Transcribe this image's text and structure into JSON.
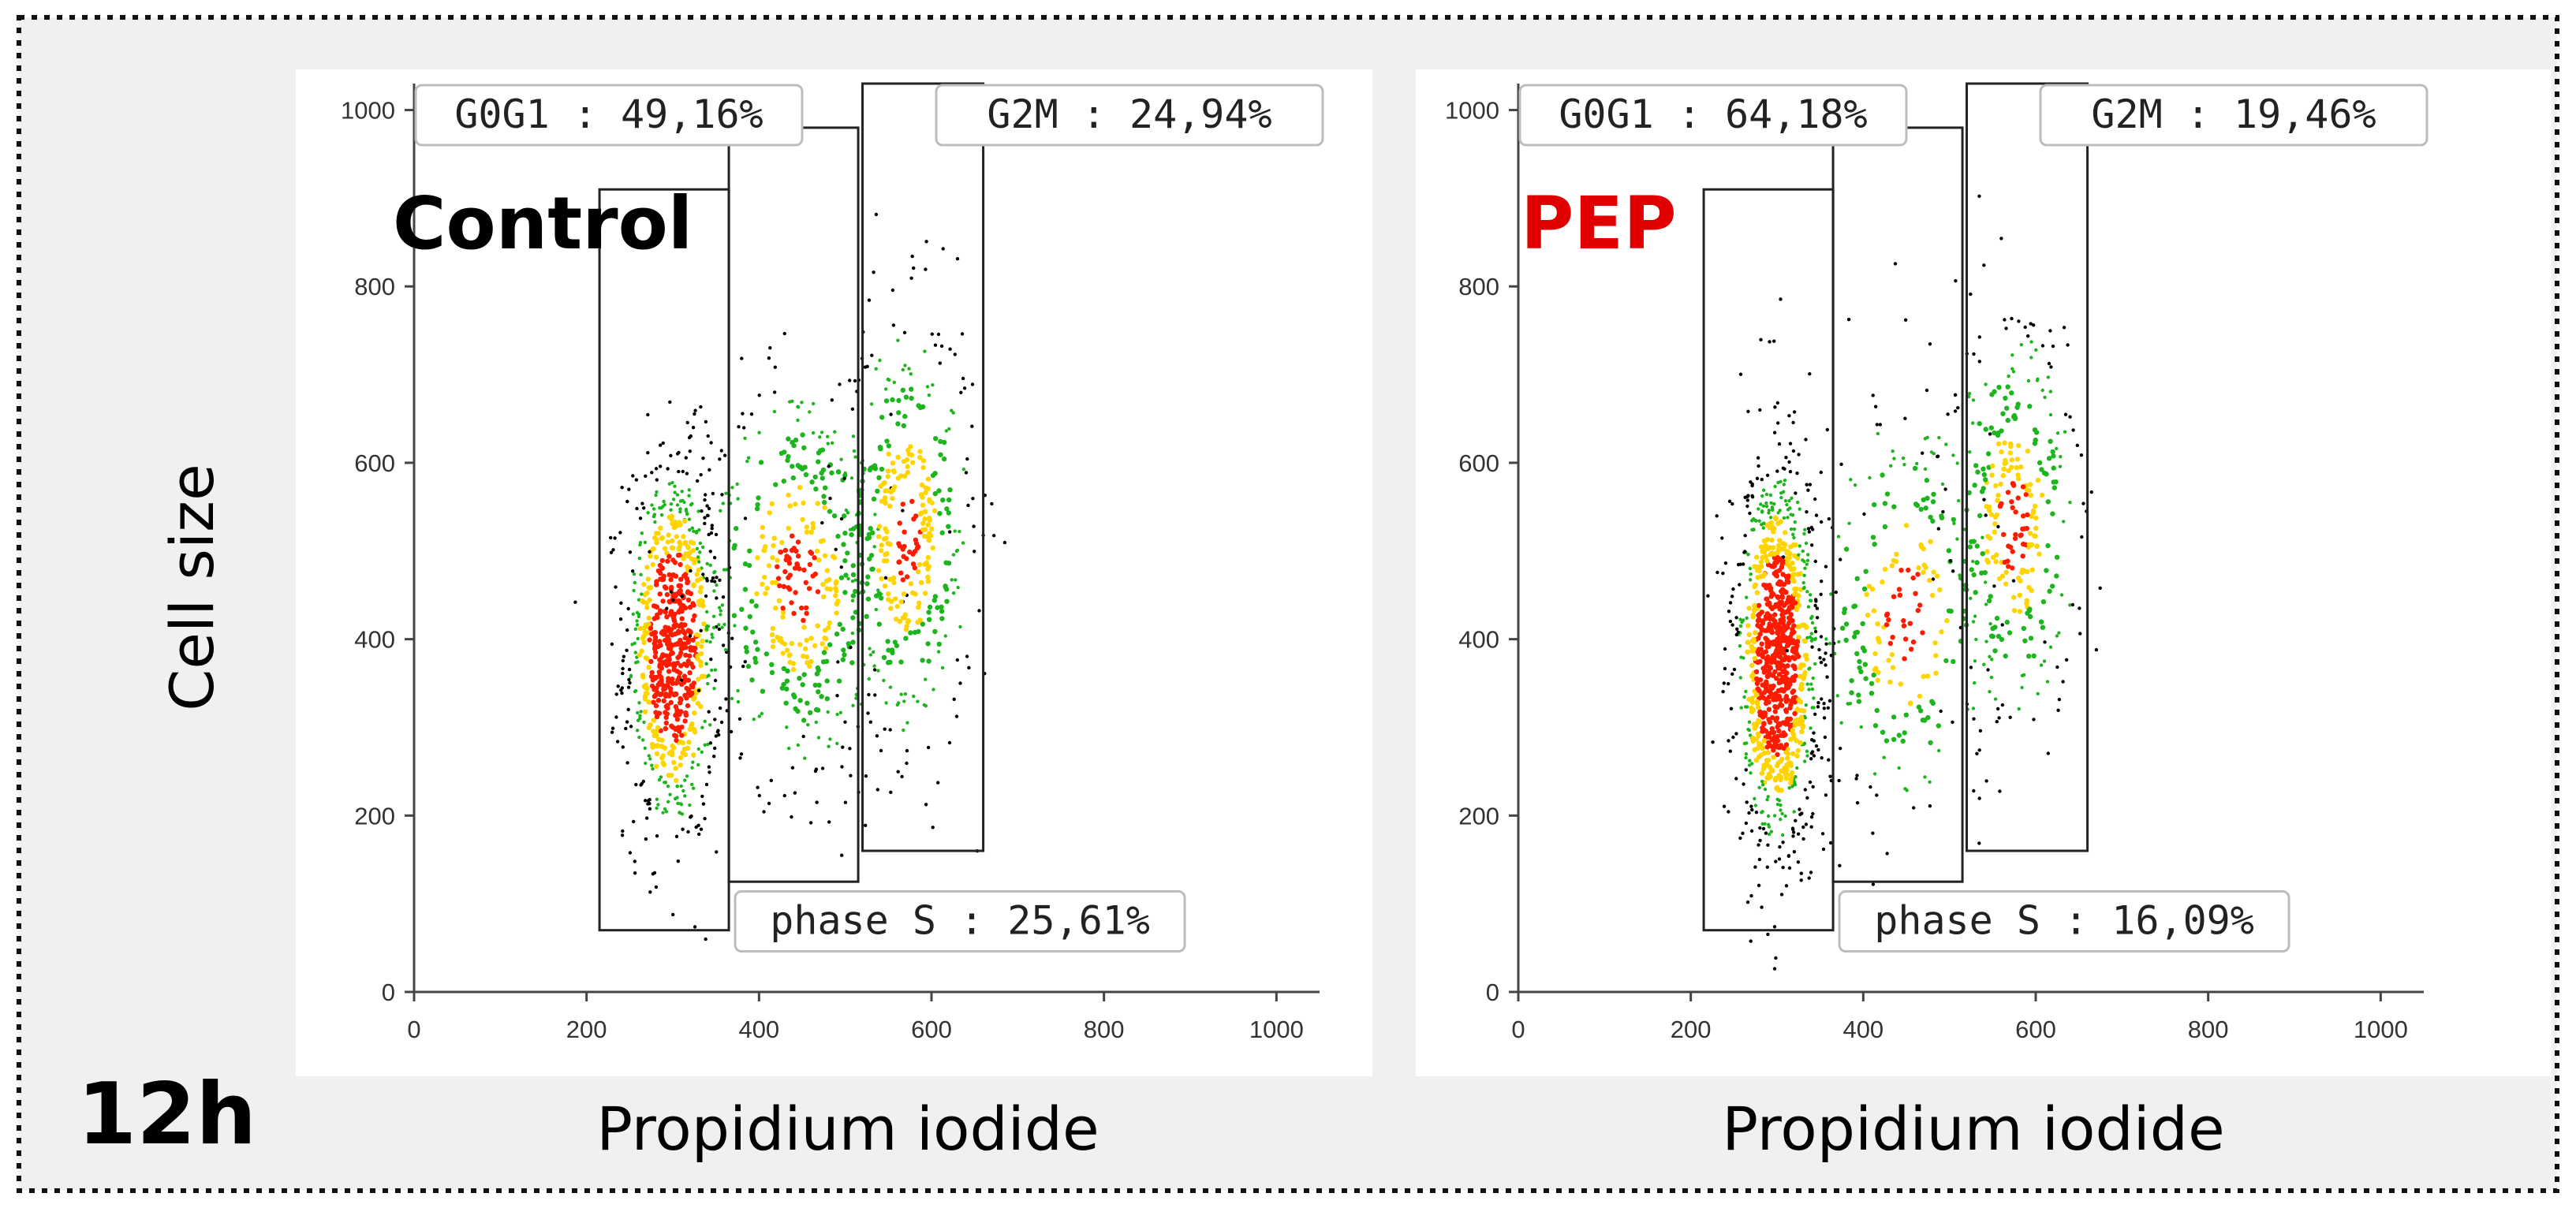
{
  "figure": {
    "time_label": "12h",
    "y_axis_label": "Cell size"
  },
  "colors": {
    "background": "#f0f0f0",
    "plot_background": "#ffffff",
    "control_label": "#000000",
    "treatment_label": "#e00000",
    "density_low": "#000000",
    "density_mid": "#1db51d",
    "density_high": "#ffd400",
    "density_peak": "#ff1a00"
  },
  "chart_data": [
    {
      "type": "scatter",
      "title": "Control",
      "xlabel": "Propidium iodide",
      "ylabel": "Cell size",
      "xlim": [
        0,
        1050
      ],
      "ylim": [
        0,
        1030
      ],
      "xticks": [
        0,
        200,
        400,
        600,
        800,
        1000
      ],
      "yticks": [
        0,
        200,
        400,
        600,
        800,
        1000
      ],
      "populations": [
        {
          "name": "G0G1",
          "center": [
            300,
            390
          ],
          "spread": [
            28,
            110
          ],
          "weight": 0.49
        },
        {
          "name": "S",
          "center": [
            445,
            470
          ],
          "spread": [
            55,
            120
          ],
          "weight": 0.26
        },
        {
          "name": "G2M",
          "center": [
            570,
            520
          ],
          "spread": [
            40,
            125
          ],
          "weight": 0.25
        }
      ],
      "gates": [
        {
          "name": "G0G1",
          "x_range": [
            215,
            365
          ],
          "y_range": [
            70,
            910
          ],
          "label": "G0G1 : 49,16%",
          "label_position": "top-left"
        },
        {
          "name": "phase S",
          "x_range": [
            365,
            515
          ],
          "y_range": [
            125,
            980
          ],
          "label": "phase S : 25,61%",
          "label_position": "bottom"
        },
        {
          "name": "G2M",
          "x_range": [
            520,
            660
          ],
          "y_range": [
            160,
            1030
          ],
          "label": "G2M : 24,94%",
          "label_position": "top-right"
        }
      ]
    },
    {
      "type": "scatter",
      "title": "PEP",
      "xlabel": "Propidium iodide",
      "ylabel": "Cell size",
      "xlim": [
        0,
        1050
      ],
      "ylim": [
        0,
        1030
      ],
      "xticks": [
        0,
        200,
        400,
        600,
        800,
        1000
      ],
      "yticks": [
        0,
        200,
        400,
        600,
        800,
        1000
      ],
      "populations": [
        {
          "name": "G0G1",
          "center": [
            300,
            380
          ],
          "spread": [
            25,
            115
          ],
          "weight": 0.64
        },
        {
          "name": "S",
          "center": [
            450,
            430
          ],
          "spread": [
            55,
            120
          ],
          "weight": 0.16
        },
        {
          "name": "G2M",
          "center": [
            575,
            530
          ],
          "spread": [
            40,
            120
          ],
          "weight": 0.2
        }
      ],
      "gates": [
        {
          "name": "G0G1",
          "x_range": [
            215,
            365
          ],
          "y_range": [
            70,
            910
          ],
          "label": "G0G1 : 64,18%",
          "label_position": "top-left"
        },
        {
          "name": "phase S",
          "x_range": [
            365,
            515
          ],
          "y_range": [
            125,
            980
          ],
          "label": "phase S : 16,09%",
          "label_position": "bottom"
        },
        {
          "name": "G2M",
          "x_range": [
            520,
            660
          ],
          "y_range": [
            160,
            1030
          ],
          "label": "G2M : 19,46%",
          "label_position": "top-right"
        }
      ]
    }
  ]
}
